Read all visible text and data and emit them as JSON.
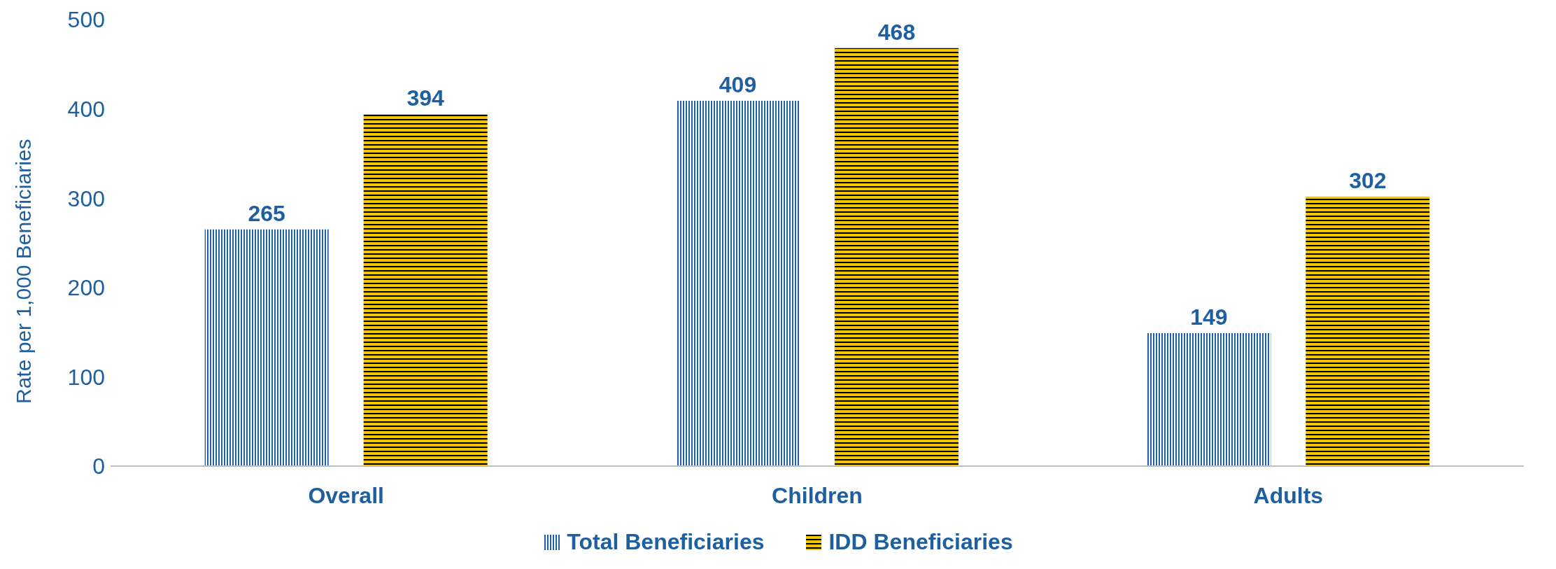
{
  "chart_data": {
    "type": "bar",
    "ylabel": "Rate per 1,000 Beneficiaries",
    "categories": [
      "Overall",
      "Children",
      "Adults"
    ],
    "series": [
      {
        "name": "Total Beneficiaries",
        "color": "#1f5fa8",
        "values": [
          265,
          409,
          149
        ]
      },
      {
        "name": "IDD Beneficiaries",
        "color": "#f5c400",
        "values": [
          394,
          468,
          302
        ]
      }
    ],
    "ylim": [
      0,
      500
    ],
    "yticks": [
      0,
      100,
      200,
      300,
      400,
      500
    ],
    "grid": false,
    "legend": "bottom",
    "data_labels": true
  }
}
